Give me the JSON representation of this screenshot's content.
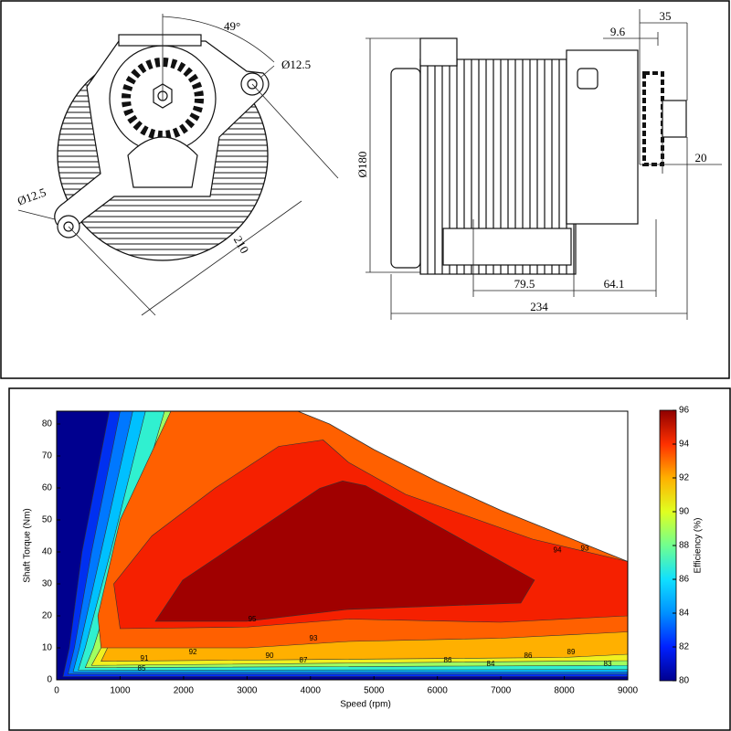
{
  "drawing": {
    "front_view": {
      "angle": "49°",
      "hole_right": "Ø12.5",
      "hole_left": "Ø12.5",
      "span": "210"
    },
    "side_view": {
      "diameter": "Ø180",
      "flange": "35",
      "offset": "9.6",
      "shaft": "20",
      "fins": "79.5",
      "gearbox": "64.1",
      "length": "234"
    }
  },
  "chart_data": {
    "type": "contour",
    "x_label": "Speed  (rpm)",
    "y_label": "Shaft Torque (Nm)",
    "colorbar_label": "Efficiency (%)",
    "xlim": [
      0,
      9000
    ],
    "ylim": [
      0,
      84
    ],
    "xticks": [
      0,
      1000,
      2000,
      3000,
      4000,
      5000,
      6000,
      7000,
      8000,
      9000
    ],
    "yticks": [
      0,
      10,
      20,
      30,
      40,
      50,
      60,
      70,
      80
    ],
    "envelope": {
      "level": 80,
      "color": "#00008f",
      "x": [
        0,
        3800,
        4300,
        5000,
        6000,
        7000,
        8000,
        9000
      ],
      "y": [
        84,
        84,
        80,
        72,
        62,
        53,
        45,
        37
      ]
    },
    "contours": [
      {
        "level": 82,
        "color": "#0030f0",
        "x": [
          100,
          9000,
          9000,
          830,
          400,
          200
        ],
        "y": [
          1,
          1,
          84,
          84,
          40,
          10
        ]
      },
      {
        "level": 84,
        "color": "#0078ff",
        "x": [
          180,
          9000,
          9000,
          1000,
          550,
          280
        ],
        "y": [
          1.8,
          1.8,
          84,
          84,
          40,
          10
        ]
      },
      {
        "level": 86,
        "color": "#00c0ff",
        "x": [
          260,
          9000,
          9000,
          1200,
          700,
          360
        ],
        "y": [
          2.5,
          2.5,
          84,
          84,
          40,
          10
        ]
      },
      {
        "level": 88,
        "color": "#30f0d0",
        "x": [
          340,
          9000,
          9000,
          1400,
          850,
          450
        ],
        "y": [
          3,
          3.2,
          84,
          84,
          40,
          10
        ]
      },
      {
        "level": 90,
        "color": "#a0ff60",
        "x": [
          450,
          9000,
          9000,
          1700,
          1050,
          580
        ],
        "y": [
          3.8,
          4.5,
          84,
          84,
          40,
          10
        ]
      },
      {
        "level": 91,
        "color": "#f0f020",
        "x": [
          550,
          9000,
          9000,
          1950,
          1200,
          700
        ],
        "y": [
          4.5,
          6,
          84,
          84,
          40,
          10
        ]
      },
      {
        "level": 92,
        "color": "#ffb000",
        "x": [
          700,
          8000,
          9000,
          9000,
          2300,
          1450,
          850
        ],
        "y": [
          5.8,
          7,
          8,
          84,
          84,
          40,
          12
        ]
      },
      {
        "level": 93,
        "color": "#ff6000",
        "x": [
          700,
          3000,
          4600,
          7000,
          9000,
          9000,
          3800,
          1800,
          1000,
          650
        ],
        "y": [
          10,
          10,
          12,
          13,
          15,
          84,
          84,
          84,
          50,
          20
        ]
      },
      {
        "level": 94,
        "color": "#f52000",
        "x": [
          1000,
          3000,
          4600,
          7000,
          9000,
          9000,
          7500,
          5500,
          4600,
          4200,
          3500,
          2500,
          1500,
          900
        ],
        "y": [
          16,
          16.5,
          19,
          18,
          20,
          37,
          44,
          58,
          68,
          75,
          73,
          60,
          45,
          30
        ]
      },
      {
        "level": 95,
        "color": "#a00000",
        "x": [
          1555,
          1987,
          4147,
          4507,
          4867,
          7531,
          7315,
          4579,
          2995
        ],
        "y": [
          18.3,
          31.2,
          59.9,
          62.2,
          60.7,
          31.2,
          24,
          22,
          18.3
        ]
      }
    ],
    "contour_labels": [
      {
        "x": 7891,
        "y": 40.4,
        "value": 94
      },
      {
        "x": 8323,
        "y": 41,
        "value": 93
      },
      {
        "x": 3082,
        "y": 18.9,
        "value": 95
      },
      {
        "x": 4046,
        "y": 12.9,
        "value": 93
      },
      {
        "x": 2146,
        "y": 8.6,
        "value": 92
      },
      {
        "x": 1382,
        "y": 6.6,
        "value": 91
      },
      {
        "x": 3355,
        "y": 7.4,
        "value": 90
      },
      {
        "x": 3888,
        "y": 6,
        "value": 87
      },
      {
        "x": 1339,
        "y": 3.4,
        "value": 85
      },
      {
        "x": 6163,
        "y": 6,
        "value": 86
      },
      {
        "x": 6840,
        "y": 4.9,
        "value": 84
      },
      {
        "x": 7430,
        "y": 7.4,
        "value": 86
      },
      {
        "x": 8107,
        "y": 8.6,
        "value": 89
      },
      {
        "x": 8683,
        "y": 4.9,
        "value": 83
      }
    ],
    "colorbar": {
      "clim": [
        80,
        96
      ],
      "ticks": [
        80,
        82,
        84,
        86,
        88,
        90,
        92,
        94,
        96
      ],
      "colors": [
        "#00008f",
        "#0020ff",
        "#0090ff",
        "#10e0ff",
        "#70ff90",
        "#e0ff20",
        "#ffb000",
        "#ff3000",
        "#8f0000"
      ]
    }
  }
}
